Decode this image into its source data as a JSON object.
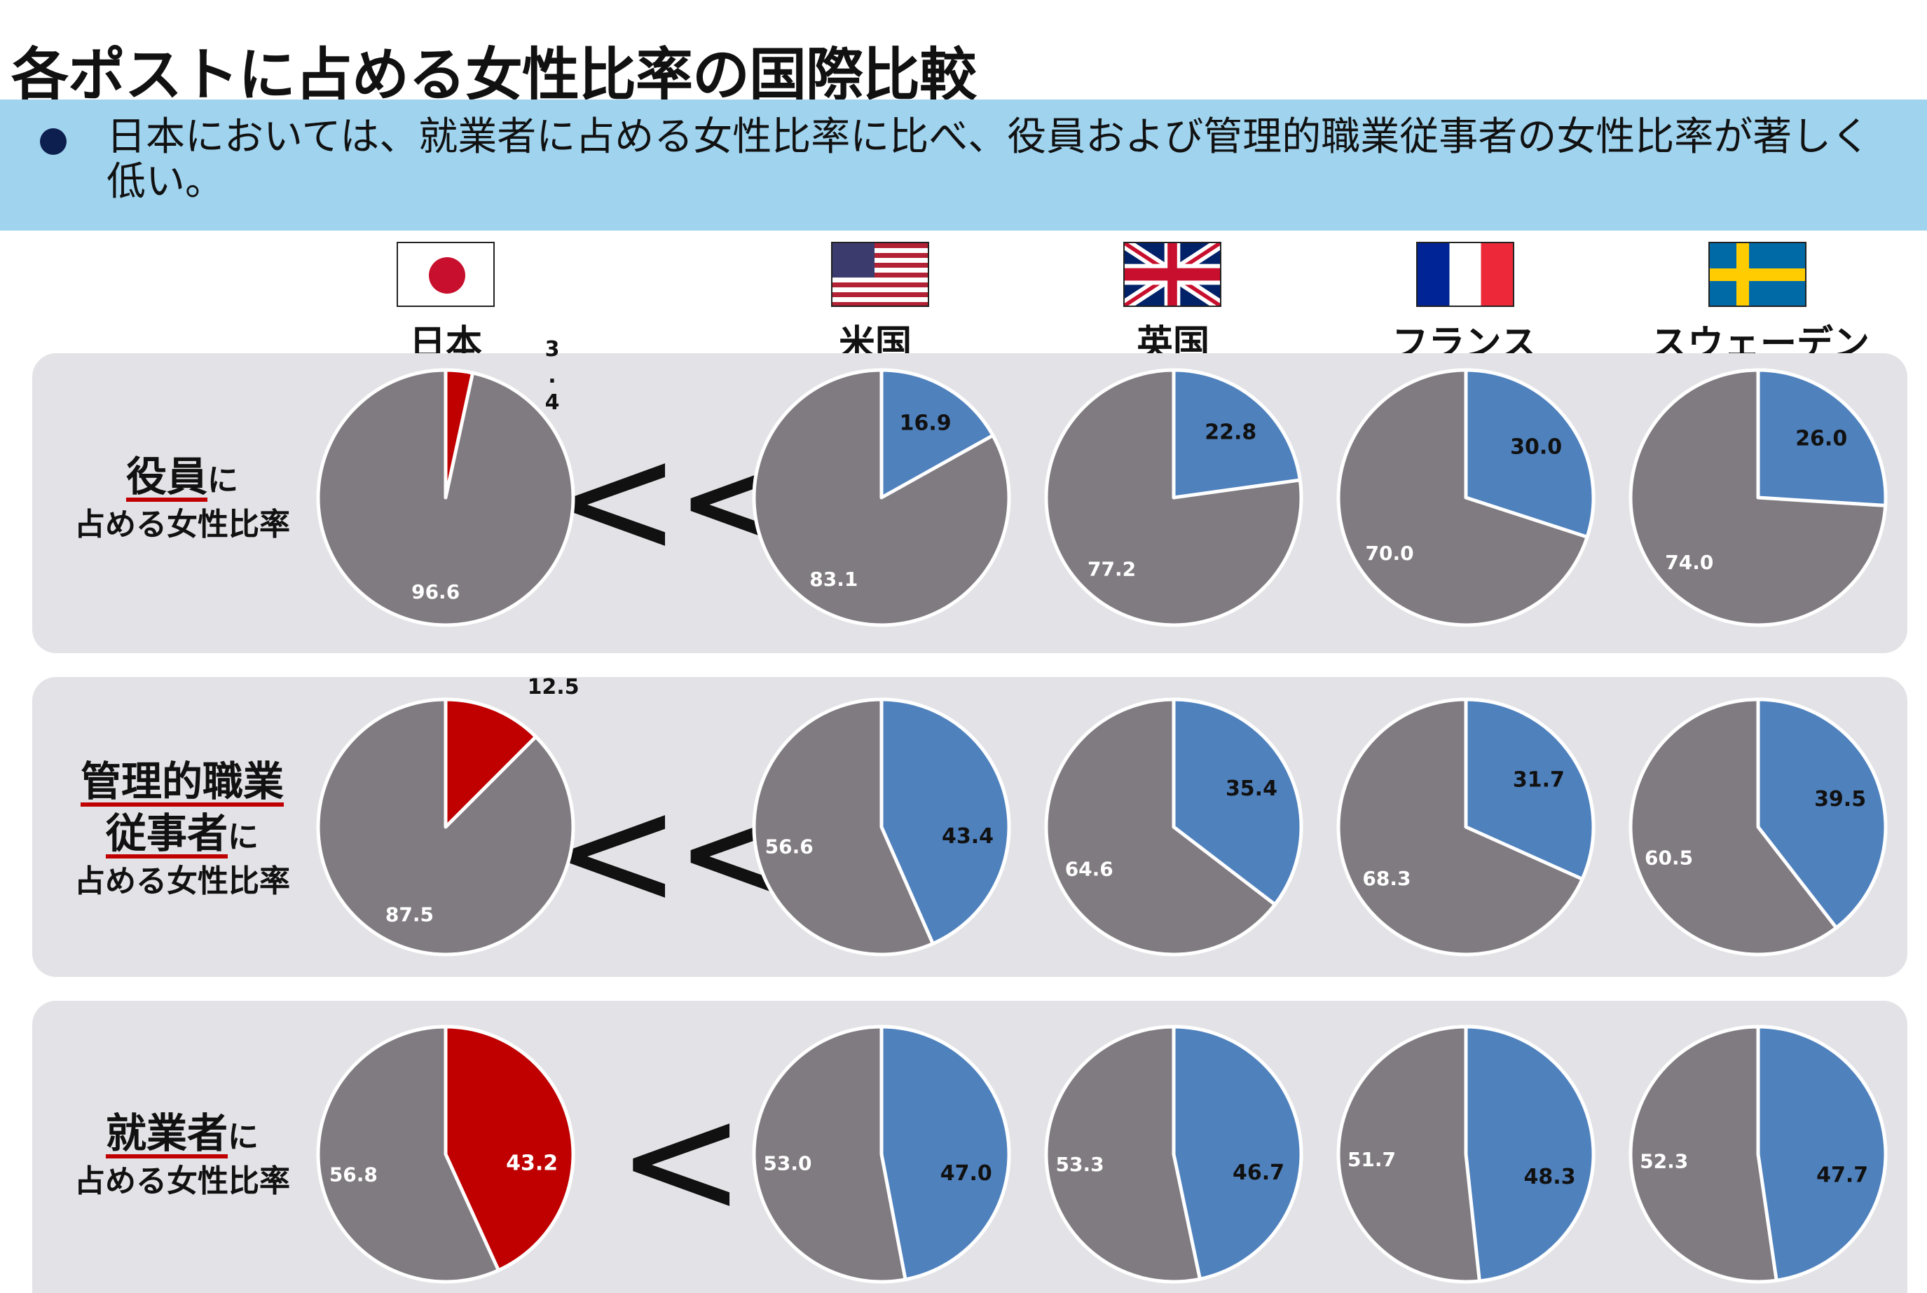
{
  "title": "各ポストに占める女性比率の国際比較",
  "summary": "日本においては、就業者に占める女性比率に比べ、役員および管理的職業従事者の女性比率が著しく低い。",
  "countries": [
    {
      "name": "日本",
      "flag": "japan-flag"
    },
    {
      "name": "米国",
      "flag": "us-flag"
    },
    {
      "name": "英国",
      "flag": "uk-flag"
    },
    {
      "name": "フランス",
      "flag": "france-flag"
    },
    {
      "name": "スウェーデン",
      "flag": "sweden-flag"
    }
  ],
  "rows": [
    {
      "label_main": "役員",
      "label_suffix": "に",
      "label_sub": "占める女性比率",
      "comparison": "<<"
    },
    {
      "label_main_1": "管理的職業",
      "label_main_2": "従事者",
      "label_suffix": "に",
      "label_sub": "占める女性比率",
      "comparison": "<<"
    },
    {
      "label_main": "就業者",
      "label_suffix": "に",
      "label_sub": "占める女性比率",
      "comparison": "<"
    }
  ],
  "colors": {
    "japan_female": "#c00000",
    "other_female": "#4f81bd",
    "male": "#807b80",
    "banner": "#9fd3ee",
    "panel": "#e3e2e6"
  },
  "chart_data": [
    {
      "type": "pie",
      "row": "役員",
      "country": "日本",
      "slices": [
        {
          "label": "3.4",
          "value": 3.4,
          "label_text": "3\n.\n4"
        },
        {
          "label": "96.6",
          "value": 96.6
        }
      ]
    },
    {
      "type": "pie",
      "row": "役員",
      "country": "米国",
      "slices": [
        {
          "label": "16.9",
          "value": 16.9
        },
        {
          "label": "83.1",
          "value": 83.1
        }
      ]
    },
    {
      "type": "pie",
      "row": "役員",
      "country": "英国",
      "slices": [
        {
          "label": "22.8",
          "value": 22.8
        },
        {
          "label": "77.2",
          "value": 77.2
        }
      ]
    },
    {
      "type": "pie",
      "row": "役員",
      "country": "フランス",
      "slices": [
        {
          "label": "30.0",
          "value": 30.0
        },
        {
          "label": "70.0",
          "value": 70.0
        }
      ]
    },
    {
      "type": "pie",
      "row": "役員",
      "country": "スウェーデン",
      "slices": [
        {
          "label": "26.0",
          "value": 26.0
        },
        {
          "label": "74.0",
          "value": 74.0
        }
      ]
    },
    {
      "type": "pie",
      "row": "管理的職業従事者",
      "country": "日本",
      "slices": [
        {
          "label": "12.5",
          "value": 12.5
        },
        {
          "label": "87.5",
          "value": 87.5
        }
      ]
    },
    {
      "type": "pie",
      "row": "管理的職業従事者",
      "country": "米国",
      "slices": [
        {
          "label": "43.4",
          "value": 43.4
        },
        {
          "label": "56.6",
          "value": 56.6
        }
      ]
    },
    {
      "type": "pie",
      "row": "管理的職業従事者",
      "country": "英国",
      "slices": [
        {
          "label": "35.4",
          "value": 35.4
        },
        {
          "label": "64.6",
          "value": 64.6
        }
      ]
    },
    {
      "type": "pie",
      "row": "管理的職業従事者",
      "country": "フランス",
      "slices": [
        {
          "label": "31.7",
          "value": 31.7
        },
        {
          "label": "68.3",
          "value": 68.3
        }
      ]
    },
    {
      "type": "pie",
      "row": "管理的職業従事者",
      "country": "スウェーデン",
      "slices": [
        {
          "label": "39.5",
          "value": 39.5
        },
        {
          "label": "60.5",
          "value": 60.5
        }
      ]
    },
    {
      "type": "pie",
      "row": "就業者",
      "country": "日本",
      "slices": [
        {
          "label": "43.2",
          "value": 43.2
        },
        {
          "label": "56.8",
          "value": 56.8
        }
      ]
    },
    {
      "type": "pie",
      "row": "就業者",
      "country": "米国",
      "slices": [
        {
          "label": "47.0",
          "value": 47.0
        },
        {
          "label": "53.0",
          "value": 53.0
        }
      ]
    },
    {
      "type": "pie",
      "row": "就業者",
      "country": "英国",
      "slices": [
        {
          "label": "46.7",
          "value": 46.7
        },
        {
          "label": "53.3",
          "value": 53.3
        }
      ]
    },
    {
      "type": "pie",
      "row": "就業者",
      "country": "フランス",
      "slices": [
        {
          "label": "48.3",
          "value": 48.3
        },
        {
          "label": "51.7",
          "value": 51.7
        }
      ]
    },
    {
      "type": "pie",
      "row": "就業者",
      "country": "スウェーデン",
      "slices": [
        {
          "label": "47.7",
          "value": 47.7
        },
        {
          "label": "52.3",
          "value": 52.3
        }
      ]
    }
  ]
}
